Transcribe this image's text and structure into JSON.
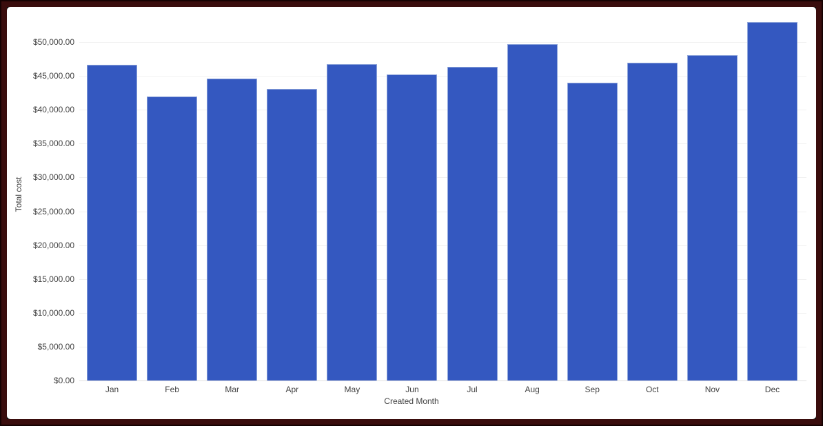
{
  "frame": {
    "border_color": "#3a0d0d",
    "outer_edge_color": "#150202",
    "card_background": "#ffffff"
  },
  "chart_data": {
    "type": "bar",
    "title": "",
    "xlabel": "Created Month",
    "ylabel": "Total cost",
    "categories": [
      "Jan",
      "Feb",
      "Mar",
      "Apr",
      "May",
      "Jun",
      "Jul",
      "Aug",
      "Sep",
      "Oct",
      "Nov",
      "Dec"
    ],
    "values": [
      46600,
      42000,
      44650,
      43050,
      46750,
      45200,
      46350,
      49750,
      44050,
      47000,
      48050,
      53000
    ],
    "ylim": [
      0,
      55000
    ],
    "ytick_step": 5000,
    "ytick_labels": [
      "$0.00",
      "$5,000.00",
      "$10,000.00",
      "$15,000.00",
      "$20,000.00",
      "$25,000.00",
      "$30,000.00",
      "$35,000.00",
      "$40,000.00",
      "$45,000.00",
      "$50,000.00"
    ],
    "grid": true,
    "legend": "none",
    "colors": {
      "bar_fill": "#3458c0",
      "bar_border": "#8da4da",
      "gridline": "#f1f1f1",
      "baseline": "#e0e0e0",
      "tick_text": "#424242",
      "axis_title_text": "#424242"
    }
  }
}
